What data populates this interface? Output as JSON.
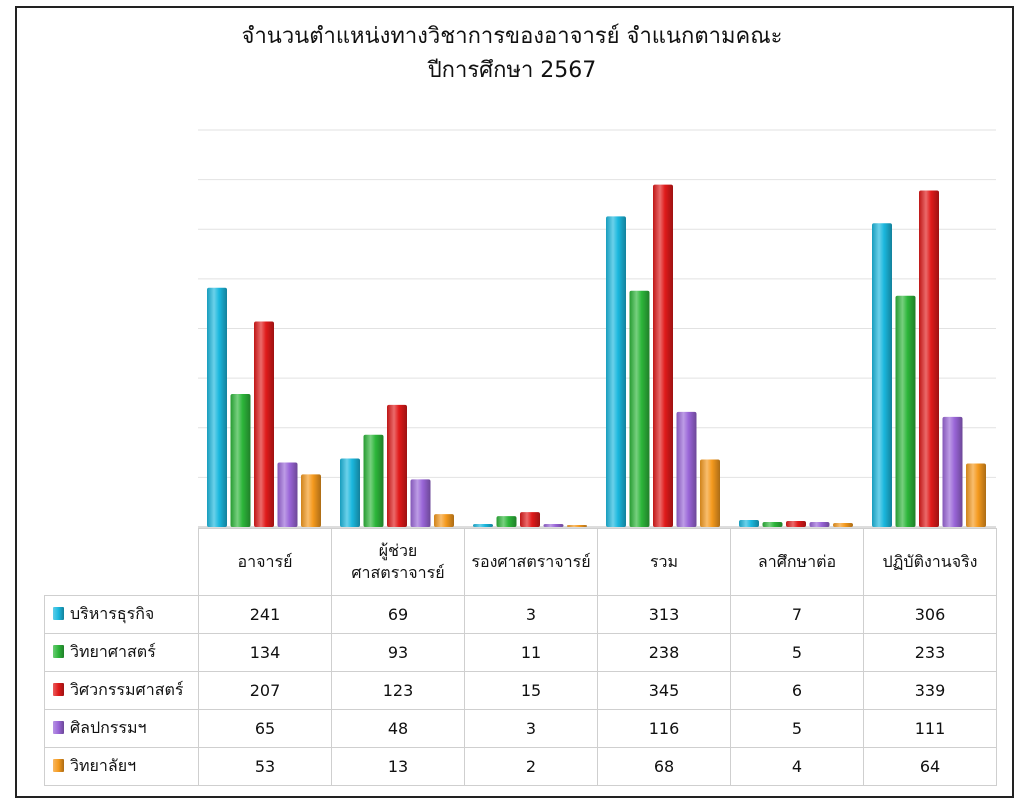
{
  "chart_data": {
    "type": "bar",
    "title": "จำนวนตำแหน่งทางวิชาการของอาจารย์ จำแนกตามคณะ",
    "subtitle": "ปีการศึกษา 2567",
    "categories": [
      [
        "อาจารย์"
      ],
      [
        "ผู้ช่วย",
        "ศาสตราจารย์"
      ],
      [
        "รองศาสตราจารย์"
      ],
      [
        "รวม"
      ],
      [
        "ลาศึกษาต่อ"
      ],
      [
        "ปฏิบัติงานจริง"
      ]
    ],
    "series": [
      {
        "name": "บริหารธุรกิจ",
        "color": "#1bb8de",
        "values": [
          241,
          69,
          3,
          313,
          7,
          306
        ]
      },
      {
        "name": "วิทยาศาสตร์",
        "color": "#2db63a",
        "values": [
          134,
          93,
          11,
          238,
          5,
          233
        ]
      },
      {
        "name": "วิศวกรรมศาสตร์",
        "color": "#e01a1a",
        "values": [
          207,
          123,
          15,
          345,
          6,
          339
        ]
      },
      {
        "name": "ศิลปกรรมฯ",
        "color": "#9a66d8",
        "values": [
          65,
          48,
          3,
          116,
          5,
          111
        ]
      },
      {
        "name": "วิทยาลัยฯ",
        "color": "#f59a1e",
        "values": [
          53,
          13,
          2,
          68,
          4,
          64
        ]
      }
    ],
    "ylim": [
      0,
      400
    ],
    "grid": true,
    "legend": "data-table",
    "xlabel": "",
    "ylabel": ""
  }
}
